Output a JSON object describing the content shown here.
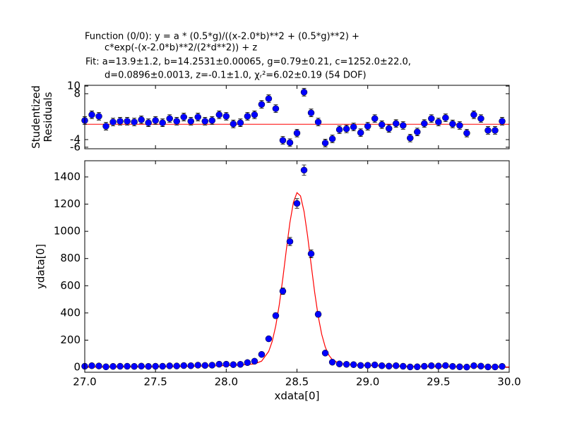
{
  "chart_data": [
    {
      "type": "scatter",
      "title": [
        "Function (0/0): y = a * (0.5*g)/((x-2.0*b)**2 + (0.5*g)**2) +",
        "c*exp(-(x-2.0*b)**2/(2*d**2)) + z",
        "Fit: a=13.9±1.2, b=14.2531±0.00065, g=0.79±0.21, c=1252.0±22.0,",
        "d=0.0896±0.0013, z=-0.1±1.0, χᵣ²=6.02±0.19 (54 DOF)"
      ],
      "ylabel": [
        "Studentized",
        "Residuals"
      ],
      "xlim": [
        27.0,
        30.0
      ],
      "xticks": [
        27.0,
        27.5,
        28.0,
        28.5,
        29.0,
        29.5,
        30.0
      ],
      "ylim": [
        -6.4,
        10.2
      ],
      "yticks": [
        -6,
        -4,
        8,
        10
      ],
      "hline": {
        "value": 0,
        "color": "#ff0000"
      },
      "x": [
        27.0,
        27.05,
        27.1,
        27.15,
        27.2,
        27.25,
        27.3,
        27.35,
        27.4,
        27.45,
        27.5,
        27.55,
        27.6,
        27.65,
        27.7,
        27.75,
        27.8,
        27.85,
        27.9,
        27.95,
        28.0,
        28.05,
        28.1,
        28.15,
        28.2,
        28.25,
        28.3,
        28.35,
        28.4,
        28.45,
        28.5,
        28.55,
        28.6,
        28.65,
        28.7,
        28.75,
        28.8,
        28.85,
        28.9,
        28.95,
        29.0,
        29.05,
        29.1,
        29.15,
        29.2,
        29.25,
        29.3,
        29.35,
        29.4,
        29.45,
        29.5,
        29.55,
        29.6,
        29.65,
        29.7,
        29.75,
        29.8,
        29.85,
        29.9,
        29.95
      ],
      "points": {
        "color": "#0000ff",
        "values": [
          1.0,
          2.5,
          2.1,
          -0.5,
          0.6,
          0.8,
          0.8,
          0.6,
          1.2,
          0.4,
          1.0,
          0.4,
          1.5,
          0.8,
          1.9,
          0.8,
          1.9,
          0.8,
          1.0,
          2.5,
          2.1,
          0.1,
          0.4,
          2.1,
          2.5,
          5.2,
          6.7,
          4.1,
          -4.2,
          -4.8,
          -2.3,
          8.4,
          3.0,
          0.6,
          -4.9,
          -3.8,
          -1.4,
          -1.2,
          -0.7,
          -2.2,
          -0.5,
          1.5,
          -0.1,
          -1.1,
          0.2,
          -0.3,
          -3.6,
          -2.0,
          0.2,
          1.5,
          0.6,
          1.7,
          0.1,
          -0.3,
          -2.3,
          2.5,
          1.5,
          -1.6,
          -1.6,
          0.8
        ],
        "errors": [
          1,
          1,
          1,
          1,
          1,
          1,
          1,
          1,
          1,
          1,
          1,
          1,
          1,
          1,
          1,
          1,
          1,
          1,
          1,
          1,
          1,
          1,
          1,
          1,
          1,
          1,
          1,
          1,
          1,
          1,
          1,
          1,
          1,
          1,
          1,
          1,
          1,
          1,
          1,
          1,
          1,
          1,
          1,
          1,
          1,
          1,
          1,
          1,
          1,
          1,
          1,
          1,
          1,
          1,
          1,
          1,
          1,
          1,
          1,
          1
        ]
      }
    },
    {
      "type": "scatter",
      "xlabel": "xdata[0]",
      "ylabel": [
        "ydata[0]"
      ],
      "xlim": [
        27.0,
        30.0
      ],
      "xticks": [
        {
          "value": 27.0,
          "label": "27.0"
        },
        27.5,
        {
          "value": 28.0,
          "label": "28.0"
        },
        28.5,
        {
          "value": 29.0,
          "label": "29.0"
        },
        29.5,
        {
          "value": 30.0,
          "label": "30.0"
        }
      ],
      "ylim": [
        -36,
        1519
      ],
      "yticks": [
        0,
        200,
        400,
        600,
        800,
        1000,
        1200,
        1400
      ],
      "x": [
        27.0,
        27.05,
        27.1,
        27.15,
        27.2,
        27.25,
        27.3,
        27.35,
        27.4,
        27.45,
        27.5,
        27.55,
        27.6,
        27.65,
        27.7,
        27.75,
        27.8,
        27.85,
        27.9,
        27.95,
        28.0,
        28.05,
        28.1,
        28.15,
        28.2,
        28.25,
        28.3,
        28.35,
        28.4,
        28.45,
        28.5,
        28.55,
        28.6,
        28.65,
        28.7,
        28.75,
        28.8,
        28.85,
        28.9,
        28.95,
        29.0,
        29.05,
        29.1,
        29.15,
        29.2,
        29.25,
        29.3,
        29.35,
        29.4,
        29.45,
        29.5,
        29.55,
        29.6,
        29.65,
        29.7,
        29.75,
        29.8,
        29.85,
        29.9,
        29.95
      ],
      "points": {
        "color": "#0000ff",
        "values": [
          8,
          12,
          10,
          4,
          7,
          8,
          8,
          7,
          9,
          7,
          8,
          8,
          11,
          10,
          13,
          12,
          16,
          14,
          16,
          23,
          23,
          20,
          22,
          35,
          45,
          95,
          210,
          380,
          560,
          925,
          1205,
          1450,
          835,
          390,
          105,
          38,
          25,
          22,
          20,
          14,
          15,
          18,
          12,
          9,
          12,
          8,
          3,
          4,
          8,
          12,
          10,
          13,
          7,
          4,
          2,
          12,
          9,
          3,
          3,
          7
        ],
        "errors": [
          4,
          4,
          4,
          4,
          4,
          4,
          4,
          4,
          4,
          4,
          4,
          4,
          4,
          4,
          4,
          4,
          4,
          4,
          4,
          6,
          6,
          6,
          6,
          6,
          6,
          10,
          15,
          20,
          24,
          30,
          35,
          38,
          29,
          20,
          10,
          6,
          6,
          6,
          6,
          4,
          4,
          4,
          4,
          4,
          4,
          4,
          4,
          4,
          4,
          4,
          4,
          4,
          4,
          4,
          4,
          4,
          4,
          4,
          4,
          4
        ]
      },
      "fit": {
        "color": "#ff0000",
        "x": [
          27.0,
          27.5,
          27.8,
          28.0,
          28.1,
          28.2,
          28.25,
          28.3,
          28.325,
          28.35,
          28.375,
          28.4,
          28.425,
          28.45,
          28.475,
          28.5,
          28.525,
          28.55,
          28.575,
          28.6,
          28.625,
          28.65,
          28.675,
          28.7,
          28.725,
          28.75,
          28.8,
          28.9,
          29.0,
          29.2,
          29.5,
          30.0
        ],
        "values": [
          2.2,
          4.6,
          8.3,
          13.2,
          17.0,
          25.6,
          45.9,
          116.7,
          191,
          305,
          461,
          654,
          866,
          1064,
          1214,
          1284,
          1260,
          1146,
          966,
          757,
          552,
          376,
          242,
          149,
          90,
          56,
          28.3,
          17.5,
          13.6,
          8.5,
          4.7,
          2.2
        ]
      }
    }
  ]
}
